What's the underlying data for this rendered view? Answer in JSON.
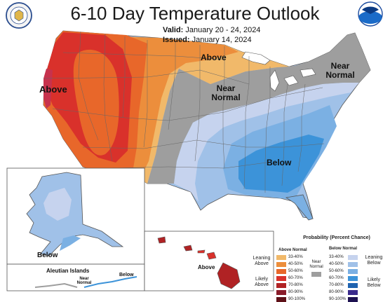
{
  "title": "6-10 Day Temperature Outlook",
  "valid": {
    "label": "Valid:",
    "value": "January 20 - 24, 2024"
  },
  "issued": {
    "label": "Issued:",
    "value": "January 14, 2024"
  },
  "region_labels": {
    "west_above": "Above",
    "north_above": "Above",
    "central_near": "Near Normal",
    "northeast_near": "Near Normal",
    "southeast_below": "Below",
    "alaska_below": "Below",
    "hawaii_above": "Above",
    "aleutian_title": "Aleutian Islands",
    "aleutian_near": "Near Normal",
    "aleutian_below": "Below"
  },
  "legend": {
    "title": "Probability (Percent Chance)",
    "above_header": "Above Normal",
    "below_header": "Below Normal",
    "near_label": "Near Normal",
    "leaning_above": "Leaning Above",
    "likely_above": "Likely Above",
    "leaning_below": "Leaning Below",
    "likely_below": "Likely Below",
    "above_bins": [
      "33-40%",
      "40-50%",
      "50-60%",
      "60-70%",
      "70-80%",
      "80-90%",
      "90-100%"
    ],
    "below_bins": [
      "33-40%",
      "40-50%",
      "50-60%",
      "60-70%",
      "70-80%",
      "80-90%",
      "90-100%"
    ]
  },
  "colors": {
    "above": [
      "#f1b96a",
      "#ec8e3c",
      "#e8672a",
      "#d9312b",
      "#b02224",
      "#8a1c2a",
      "#5e1118"
    ],
    "near": "#9e9e9e",
    "below": [
      "#c6d3ee",
      "#a0c1e8",
      "#7bb0e3",
      "#3c93d9",
      "#1f63b0",
      "#3a2a8c",
      "#1d1150"
    ]
  },
  "icons": [
    "doc-seal-icon",
    "noaa-logo-icon"
  ]
}
